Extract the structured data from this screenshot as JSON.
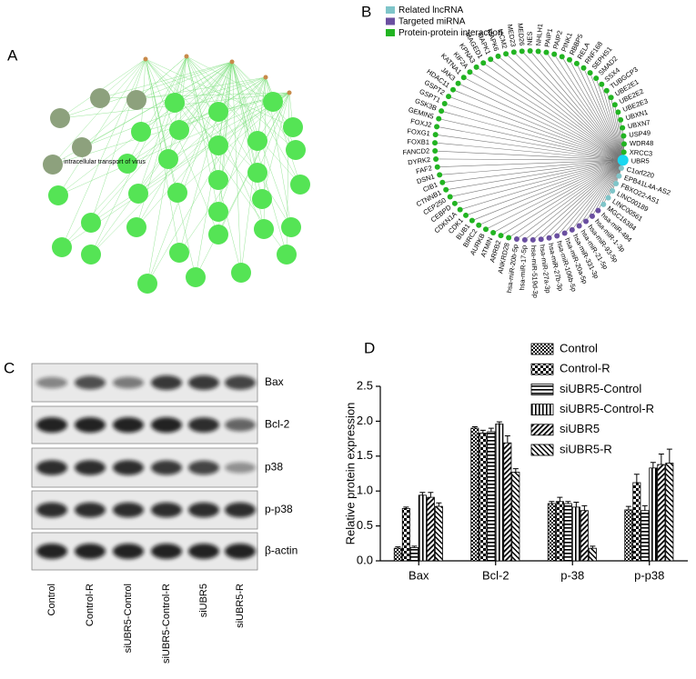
{
  "panels": [
    "A",
    "B",
    "C",
    "D"
  ],
  "panel_a": {
    "label": "intracellular transport of virus"
  },
  "panel_b": {
    "legend": [
      "Related lncRNA",
      "Targeted miRNA",
      "Protein-protein interaction"
    ],
    "center": "UBR5",
    "lncrna": [
      "C1orf220",
      "EPB41L4A-AS2",
      "FBXO22-AS1",
      "LINC00189",
      "LINC00561",
      "MGC16384"
    ],
    "mirna": [
      "hsa-miR-484",
      "hsa-miR-1-3p",
      "hsa-miR-93-5p",
      "hsa-miR-21-5p",
      "hsa-miR-331-3p",
      "hsa-miR-20a-5p",
      "hsa-miR-106b-5p",
      "hsa-miR-27b-3p",
      "hsa-miR-27a-3p",
      "hsa-miR-519d-3p",
      "hsa-miR-17-5p",
      "hsa-miR-20b-5p"
    ],
    "proteins": [
      "ANKRD28",
      "ARRB2",
      "ATMIN",
      "AURKB",
      "BIRC2",
      "BUB1",
      "CDK1",
      "CDKN1A",
      "CEBPD",
      "CEP250",
      "CTNNB1",
      "CIB1",
      "DSN1",
      "FAF2",
      "DYRK2",
      "FANCD2",
      "FOXB1",
      "FOXG1",
      "FOXJ2",
      "GEMIN5",
      "GSK3B",
      "GSPT1",
      "GSPT2",
      "HDAC11",
      "JAK3",
      "KATNA1",
      "KIF2A",
      "KPNA3",
      "MAGED1",
      "MAPK1",
      "MAPK6",
      "MCM2",
      "MED23",
      "MED26",
      "NES",
      "NHLH1",
      "PAIP1",
      "PAIP2",
      "PINK1",
      "RBBP5",
      "RELA",
      "RNF168",
      "SEPHS1",
      "SMAD2",
      "SSX4",
      "TUBGCP3",
      "UBE2E1",
      "UBE2E2",
      "UBE2E3",
      "UBXN1",
      "UBXN7",
      "USP49",
      "WDR48",
      "XRCC3"
    ]
  },
  "panel_c": {
    "rows": [
      "Bax",
      "Bcl-2",
      "p38",
      "p-p38",
      "β-actin"
    ],
    "lanes": [
      "Control",
      "Control-R",
      "siUBR5-Control",
      "siUBR5-Control-R",
      "siUBR5",
      "siUBR5-R"
    ]
  },
  "chart_data": {
    "type": "bar",
    "y_label": "Relative protein expression",
    "categories": [
      "Bax",
      "Bcl-2",
      "p-38",
      "p-p38"
    ],
    "ylim": [
      0,
      2.5
    ],
    "yticks": [
      {
        "value": 0,
        "label": "0.0"
      },
      0.5,
      {
        "value": 1,
        "label": "1.0"
      },
      1.5,
      {
        "value": 2,
        "label": "2.0"
      },
      2.5
    ],
    "series": [
      {
        "name": "Control",
        "color": "#000000",
        "values": [
          0.18,
          1.9,
          0.82,
          0.73
        ],
        "errors": [
          0.02,
          0.02,
          0.03,
          0.05
        ]
      },
      {
        "name": "Control-R",
        "color": "#000000",
        "values": [
          0.75,
          1.83,
          0.85,
          1.12
        ],
        "errors": [
          0.02,
          0.04,
          0.06,
          0.12
        ]
      },
      {
        "name": "siUBR5-Control",
        "color": "#000000",
        "values": [
          0.19,
          1.85,
          0.82,
          0.72
        ],
        "errors": [
          0.02,
          0.05,
          0.03,
          0.07
        ]
      },
      {
        "name": "siUBR5-Control-R",
        "color": "#000000",
        "values": [
          0.94,
          1.96,
          0.77,
          1.33
        ],
        "errors": [
          0.04,
          0.03,
          0.07,
          0.08
        ]
      },
      {
        "name": "siUBR5",
        "color": "#000000",
        "values": [
          0.91,
          1.69,
          0.72,
          1.38
        ],
        "errors": [
          0.07,
          0.1,
          0.07,
          0.15
        ]
      },
      {
        "name": "siUBR5-R",
        "color": "#000000",
        "values": [
          0.78,
          1.27,
          0.18,
          1.4
        ],
        "errors": [
          0.05,
          0.05,
          0.03,
          0.2
        ]
      }
    ]
  }
}
